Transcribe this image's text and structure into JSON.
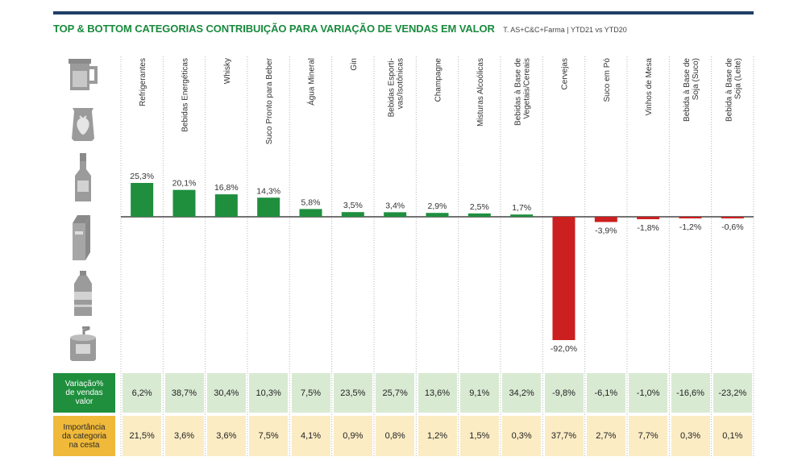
{
  "header": {
    "title": "TOP & BOTTOM CATEGORIAS CONTRIBUIÇÃO PARA VARIAÇÃO DE VENDAS EM VALOR",
    "subtitle": "T. AS+C&C+Farma | YTD21 vs YTD20"
  },
  "colors": {
    "positive": "#1f8f3e",
    "negative": "#cc1f1f",
    "row1": "#1f8f3e",
    "row2": "#f0b93a",
    "topbar": "#1f3f67"
  },
  "icons": [
    "juice-jug-icon",
    "snack-bag-icon",
    "liquor-bottle-icon",
    "milk-carton-icon",
    "water-bottle-icon",
    "mate-cup-icon"
  ],
  "chart_data": {
    "type": "bar",
    "categories": [
      "Refrigerantes",
      "Bebidas Energéticas",
      "Whisky",
      "Suco Pronto para Beber",
      "Água Mineral",
      "Gin",
      "Bebidas Esporti-\nvas/Isotônicas",
      "Champagne",
      "Misturas Alcoólicas",
      "Bebidas à Base de\nVegetais/Cereais",
      "Cervejas",
      "Suco em Pó",
      "Vinhos de Mesa",
      "Bebida à Base de\nSoja (Suco)",
      "Bebida à Base de\nSoja (Leite)"
    ],
    "values": [
      25.3,
      20.1,
      16.8,
      14.3,
      5.8,
      3.5,
      3.4,
      2.9,
      2.5,
      1.7,
      -92.0,
      -3.9,
      -1.8,
      -1.2,
      -0.6
    ],
    "value_labels": [
      "25,3%",
      "20,1%",
      "16,8%",
      "14,3%",
      "5,8%",
      "3,5%",
      "3,4%",
      "2,9%",
      "2,5%",
      "1,7%",
      "-92,0%",
      "-3,9%",
      "-1,8%",
      "-1,2%",
      "-0,6%"
    ],
    "ylim": [
      -92,
      25.3
    ],
    "table": {
      "rows": [
        {
          "label": "Variação%\nde vendas\nvalor",
          "values": [
            "6,2%",
            "38,7%",
            "30,4%",
            "10,3%",
            "7,5%",
            "23,5%",
            "25,7%",
            "13,6%",
            "9,1%",
            "34,2%",
            "-9,8%",
            "-6,1%",
            "-1,0%",
            "-16,6%",
            "-23,2%"
          ]
        },
        {
          "label": "Importância\nda categoria\nna cesta",
          "values": [
            "21,5%",
            "3,6%",
            "3,6%",
            "7,5%",
            "4,1%",
            "0,9%",
            "0,8%",
            "1,2%",
            "1,5%",
            "0,3%",
            "37,7%",
            "2,7%",
            "7,7%",
            "0,3%",
            "0,1%"
          ]
        }
      ]
    }
  }
}
